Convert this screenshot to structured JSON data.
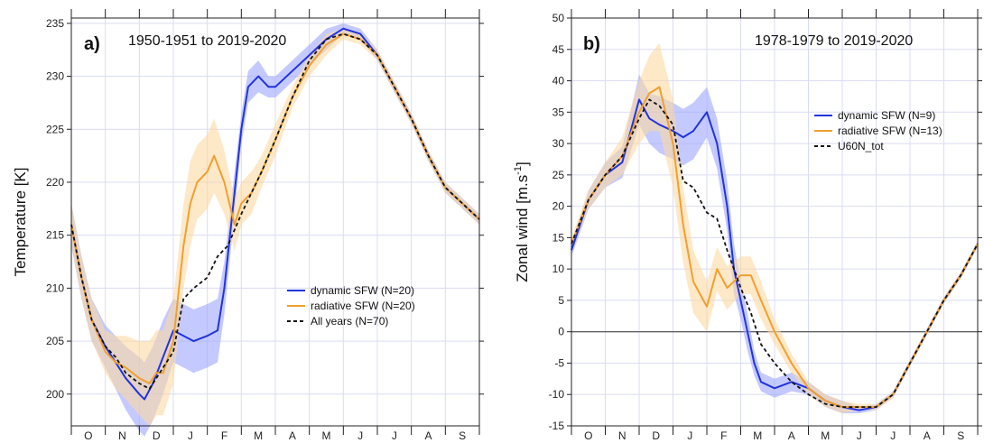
{
  "chart_data": [
    {
      "type": "line",
      "panel_label": "a)",
      "title": "1950-1951 to 2019-2020",
      "ylabel": "Temperature [K]",
      "xlabel": "",
      "ylim": [
        197,
        235.5
      ],
      "yticks": [
        200,
        205,
        210,
        215,
        220,
        225,
        230,
        235
      ],
      "months": [
        "O",
        "N",
        "D",
        "J",
        "F",
        "M",
        "A",
        "M",
        "J",
        "J",
        "A",
        "S"
      ],
      "grid": true,
      "legend_position": "right-center",
      "x_unit": "months since 1 Oct",
      "series": [
        {
          "name": "dynamic SFW (N=20)",
          "color": "#2233dd",
          "band_color": "#9da6ff",
          "style": "solid",
          "x": [
            0,
            0.3,
            0.6,
            1.0,
            1.3,
            1.6,
            2.0,
            2.15,
            2.4,
            2.7,
            3.0,
            3.3,
            3.6,
            4.0,
            4.3,
            4.5,
            4.8,
            5.0,
            5.2,
            5.5,
            5.8,
            6.0,
            6.5,
            7.0,
            7.5,
            8.0,
            8.5,
            9.0,
            9.5,
            10.0,
            10.5,
            11.0,
            11.5,
            12.0
          ],
          "values": [
            216,
            211,
            207,
            204.5,
            203,
            201.5,
            200,
            199.5,
            201,
            203.5,
            206,
            205.5,
            205,
            205.5,
            206,
            210,
            219,
            225,
            229,
            230,
            229,
            229,
            230.5,
            232,
            233.5,
            234.5,
            234,
            232,
            229,
            226,
            222.5,
            219.5,
            218,
            216.5
          ],
          "band": [
            2,
            2,
            2,
            2,
            2.5,
            3,
            3.5,
            3.5,
            3.5,
            3.5,
            3,
            3,
            3,
            3,
            3,
            2.5,
            2,
            1.5,
            1.5,
            1.5,
            1,
            1,
            1,
            1,
            1,
            0.5,
            0.5,
            0.5,
            0.5,
            0.5,
            0.5,
            0.5,
            0.5,
            0.5
          ]
        },
        {
          "name": "radiative SFW (N=20)",
          "color": "#f0a030",
          "band_color": "#fbd9a3",
          "style": "solid",
          "x": [
            0,
            0.3,
            0.6,
            1.0,
            1.3,
            1.6,
            2.0,
            2.3,
            2.5,
            2.7,
            3.0,
            3.3,
            3.5,
            3.7,
            4.0,
            4.2,
            4.5,
            4.8,
            5.0,
            5.3,
            5.6,
            6.0,
            6.5,
            7.0,
            7.5,
            8.0,
            8.5,
            9.0,
            9.5,
            10.0,
            10.5,
            11.0,
            11.5,
            12.0
          ],
          "values": [
            216,
            211,
            207,
            204,
            203,
            202.5,
            201.5,
            201,
            202,
            202,
            205,
            214,
            218,
            220,
            221,
            222.5,
            220,
            216,
            218,
            219,
            221,
            224,
            228,
            231,
            233,
            234,
            233.5,
            232,
            229,
            226,
            222.5,
            219.5,
            218,
            216.5
          ],
          "band": [
            2,
            2,
            2,
            2,
            2.5,
            3,
            3.5,
            4,
            4,
            4,
            4,
            4,
            4,
            3.5,
            3.5,
            3.5,
            3,
            2.5,
            2,
            2,
            1.5,
            1.5,
            1,
            1,
            1,
            0.5,
            0.5,
            0.5,
            0.5,
            0.5,
            0.5,
            0.5,
            0.5,
            0.5
          ]
        },
        {
          "name": "All years (N=70)",
          "color": "#111111",
          "style": "dashed",
          "x": [
            0,
            0.3,
            0.6,
            1.0,
            1.3,
            1.6,
            2.0,
            2.3,
            2.6,
            3.0,
            3.3,
            3.6,
            4.0,
            4.3,
            4.6,
            5.0,
            5.3,
            5.6,
            6.0,
            6.5,
            7.0,
            7.5,
            8.0,
            8.5,
            9.0,
            9.5,
            10.0,
            10.5,
            11.0,
            11.5,
            12.0
          ],
          "values": [
            216,
            211,
            207,
            204.5,
            203.5,
            202,
            201,
            200.5,
            202,
            204,
            209,
            210,
            211,
            213,
            214,
            217,
            219,
            221,
            224,
            228,
            231.5,
            233.5,
            234,
            233.5,
            232,
            229,
            226,
            222.5,
            219.5,
            218,
            216.5
          ]
        }
      ]
    },
    {
      "type": "line",
      "panel_label": "b)",
      "title": "1978-1979 to 2019-2020",
      "ylabel": "Zonal wind [m.s-1]",
      "ylabel_parts": [
        "Zonal wind [m.s",
        "-1",
        "]"
      ],
      "xlabel": "",
      "ylim": [
        -15,
        50
      ],
      "yticks": [
        -15,
        -10,
        -5,
        0,
        5,
        10,
        15,
        20,
        25,
        30,
        35,
        40,
        45,
        50
      ],
      "months": [
        "O",
        "N",
        "D",
        "J",
        "F",
        "M",
        "A",
        "M",
        "J",
        "J",
        "A",
        "S"
      ],
      "grid": true,
      "zero_line": true,
      "legend_position": "top-right",
      "x_unit": "months since 1 Oct",
      "series": [
        {
          "name": "dynamic SFW (N=9)",
          "color": "#2233dd",
          "band_color": "#9da6ff",
          "style": "solid",
          "x": [
            0,
            0.5,
            1.0,
            1.5,
            2.0,
            2.3,
            2.6,
            3.0,
            3.3,
            3.6,
            4.0,
            4.3,
            4.6,
            4.8,
            5.0,
            5.2,
            5.4,
            5.6,
            6.0,
            6.5,
            7.0,
            7.5,
            8.0,
            8.5,
            9.0,
            9.5,
            10.0,
            10.5,
            11.0,
            11.5,
            12.0
          ],
          "values": [
            13,
            21,
            25,
            27,
            37,
            34,
            33,
            32,
            31,
            32,
            35,
            30,
            20,
            10,
            5,
            0,
            -5,
            -8,
            -9,
            -8,
            -9,
            -11,
            -12,
            -12.5,
            -12,
            -10,
            -5,
            0,
            5,
            9,
            14
          ],
          "band": [
            1,
            1.5,
            2,
            2.5,
            4,
            4,
            4.5,
            4.5,
            4.5,
            4.5,
            4,
            4,
            4,
            4,
            3,
            3,
            2,
            1.5,
            1.5,
            1.5,
            1,
            1,
            1,
            0.5,
            0.5,
            0.5,
            0.5,
            0.5,
            0.5,
            0.5,
            0.5
          ]
        },
        {
          "name": "radiative SFW (N=13)",
          "color": "#f0a030",
          "band_color": "#fbd9a3",
          "style": "solid",
          "x": [
            0,
            0.5,
            1.0,
            1.5,
            2.0,
            2.3,
            2.6,
            3.0,
            3.3,
            3.6,
            4.0,
            4.3,
            4.6,
            5.0,
            5.3,
            5.6,
            6.0,
            6.5,
            7.0,
            7.5,
            8.0,
            8.5,
            9.0,
            9.5,
            10.0,
            10.5,
            11.0,
            11.5,
            12.0
          ],
          "values": [
            14,
            21,
            25,
            28,
            35,
            38,
            39,
            30,
            17,
            8,
            4,
            10,
            7,
            9,
            9,
            5,
            0,
            -5,
            -9,
            -11,
            -12,
            -12,
            -12,
            -10,
            -5,
            0,
            5,
            9,
            14
          ],
          "band": [
            1,
            1.5,
            2,
            3,
            5,
            6,
            7,
            7,
            6,
            5,
            4,
            3.5,
            3.5,
            3,
            3,
            3,
            2,
            1.5,
            1,
            1,
            1,
            0.5,
            0.5,
            0.5,
            0.5,
            0.5,
            0.5,
            0.5,
            0.5
          ]
        },
        {
          "name": "U60N_tot",
          "color": "#111111",
          "style": "dashed",
          "x": [
            0,
            0.5,
            1.0,
            1.5,
            2.0,
            2.3,
            2.6,
            3.0,
            3.3,
            3.6,
            4.0,
            4.3,
            4.6,
            5.0,
            5.3,
            5.6,
            6.0,
            6.5,
            7.0,
            7.5,
            8.0,
            8.5,
            9.0,
            9.5,
            10.0,
            10.5,
            11.0,
            11.5,
            12.0
          ],
          "values": [
            14,
            21,
            25,
            28,
            34,
            37,
            36,
            33,
            24,
            23,
            19,
            18,
            13,
            7,
            3,
            -2,
            -5,
            -8,
            -10,
            -11.5,
            -12,
            -12,
            -12,
            -10,
            -5,
            0,
            5,
            9,
            14
          ]
        }
      ]
    }
  ]
}
